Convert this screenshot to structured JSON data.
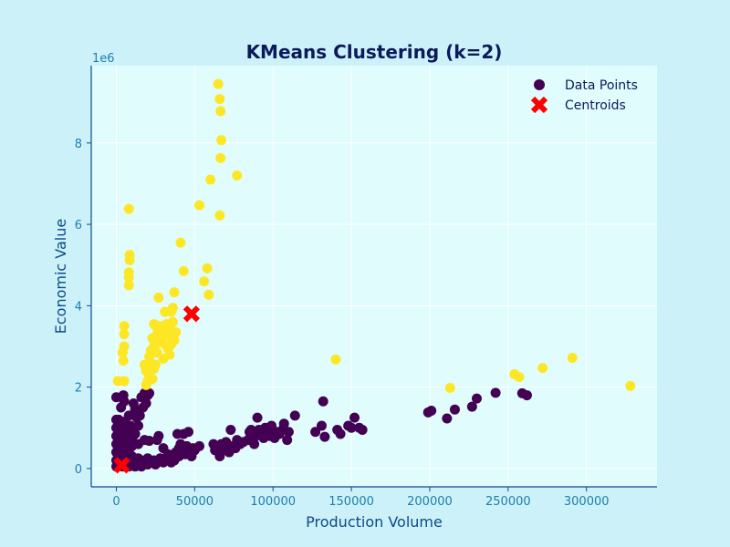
{
  "chart_data": {
    "type": "scatter",
    "title": "KMeans Clustering (k=2)",
    "xlabel": "Production Volume",
    "ylabel": "Economic Value",
    "y_offset_label": "1e6",
    "xlim": [
      -16000,
      345000
    ],
    "ylim": [
      -0.45,
      9.9
    ],
    "x_ticks": [
      0,
      50000,
      100000,
      150000,
      200000,
      250000,
      300000
    ],
    "x_tick_labels": [
      "0",
      "50000",
      "100000",
      "150000",
      "200000",
      "250000",
      "300000"
    ],
    "y_ticks": [
      0,
      2,
      4,
      6,
      8
    ],
    "y_tick_labels": [
      "0",
      "2",
      "4",
      "6",
      "8"
    ],
    "grid": true,
    "legend": {
      "position": "top-right",
      "entries": [
        "Data Points",
        "Centroids"
      ]
    },
    "colors": {
      "cluster_0": "#440154",
      "cluster_1": "#fde725",
      "centroid": "#ff0000",
      "plot_bg": "#e0fcfc",
      "figure_bg": "#cdf1f8",
      "axis": "#0b4a8a"
    },
    "series": [
      {
        "name": "Data Points (cluster 0)",
        "cluster": 0,
        "points": [
          [
            0,
            1.75
          ],
          [
            1500,
            1.2
          ],
          [
            3000,
            1.5
          ],
          [
            4500,
            1.8
          ],
          [
            5000,
            1.65
          ],
          [
            6000,
            1.1
          ],
          [
            7000,
            0.9
          ],
          [
            8000,
            1.3
          ],
          [
            9000,
            1.05
          ],
          [
            10000,
            0.95
          ],
          [
            11000,
            1.6
          ],
          [
            12000,
            1.45
          ],
          [
            13000,
            1.25
          ],
          [
            14000,
            1.05
          ],
          [
            15000,
            1.3
          ],
          [
            16000,
            1.75
          ],
          [
            17000,
            1.5
          ],
          [
            18000,
            1.85
          ],
          [
            19000,
            1.6
          ],
          [
            20000,
            1.8
          ],
          [
            21000,
            1.85
          ],
          [
            0,
            0.05
          ],
          [
            0,
            0.2
          ],
          [
            0,
            0.4
          ],
          [
            0,
            0.6
          ],
          [
            0,
            0.8
          ],
          [
            0,
            1.0
          ],
          [
            0,
            1.2
          ],
          [
            2000,
            0.1
          ],
          [
            2000,
            0.3
          ],
          [
            2000,
            0.55
          ],
          [
            2000,
            0.75
          ],
          [
            2000,
            0.95
          ],
          [
            4000,
            0.05
          ],
          [
            4000,
            0.25
          ],
          [
            4000,
            0.5
          ],
          [
            4000,
            0.7
          ],
          [
            4000,
            0.9
          ],
          [
            4000,
            1.15
          ],
          [
            6000,
            0.1
          ],
          [
            6000,
            0.35
          ],
          [
            6000,
            0.6
          ],
          [
            6000,
            0.8
          ],
          [
            8000,
            0.05
          ],
          [
            8000,
            0.2
          ],
          [
            8000,
            0.45
          ],
          [
            8000,
            0.7
          ],
          [
            10000,
            0.1
          ],
          [
            10000,
            0.3
          ],
          [
            10000,
            0.55
          ],
          [
            10000,
            0.75
          ],
          [
            12000,
            0.05
          ],
          [
            12000,
            0.2
          ],
          [
            12000,
            0.85
          ],
          [
            14000,
            0.1
          ],
          [
            14000,
            0.25
          ],
          [
            14000,
            0.6
          ],
          [
            16000,
            0.05
          ],
          [
            16000,
            0.2
          ],
          [
            18000,
            0.15
          ],
          [
            18000,
            0.7
          ],
          [
            20000,
            0.1
          ],
          [
            20000,
            0.25
          ],
          [
            21000,
            0.68
          ],
          [
            22000,
            0.15
          ],
          [
            24000,
            0.2
          ],
          [
            25000,
            0.1
          ],
          [
            26000,
            0.7
          ],
          [
            27000,
            0.8
          ],
          [
            28000,
            0.25
          ],
          [
            30000,
            0.15
          ],
          [
            30000,
            0.5
          ],
          [
            32000,
            0.2
          ],
          [
            33000,
            0.35
          ],
          [
            34000,
            0.25
          ],
          [
            35000,
            0.15
          ],
          [
            36000,
            0.3
          ],
          [
            37000,
            0.2
          ],
          [
            38000,
            0.4
          ],
          [
            39000,
            0.85
          ],
          [
            40000,
            0.5
          ],
          [
            40000,
            0.3
          ],
          [
            41000,
            0.6
          ],
          [
            42000,
            0.45
          ],
          [
            43000,
            0.85
          ],
          [
            44000,
            0.35
          ],
          [
            45000,
            0.55
          ],
          [
            46000,
            0.9
          ],
          [
            47000,
            0.4
          ],
          [
            48000,
            0.3
          ],
          [
            49000,
            0.5
          ],
          [
            50000,
            0.45
          ],
          [
            53000,
            0.55
          ],
          [
            62000,
            0.6
          ],
          [
            63000,
            0.45
          ],
          [
            65000,
            0.55
          ],
          [
            66000,
            0.3
          ],
          [
            67000,
            0.6
          ],
          [
            69000,
            0.45
          ],
          [
            70000,
            0.65
          ],
          [
            72000,
            0.4
          ],
          [
            73000,
            0.95
          ],
          [
            74000,
            0.55
          ],
          [
            76000,
            0.5
          ],
          [
            77000,
            0.7
          ],
          [
            79000,
            0.6
          ],
          [
            81000,
            0.65
          ],
          [
            84000,
            0.7
          ],
          [
            85000,
            0.9
          ],
          [
            86000,
            0.95
          ],
          [
            88000,
            0.6
          ],
          [
            89000,
            0.8
          ],
          [
            90000,
            1.25
          ],
          [
            91000,
            0.95
          ],
          [
            92000,
            0.85
          ],
          [
            94000,
            0.75
          ],
          [
            95000,
            1.0
          ],
          [
            97000,
            0.95
          ],
          [
            98000,
            0.8
          ],
          [
            99000,
            1.05
          ],
          [
            101000,
            0.75
          ],
          [
            102000,
            0.9
          ],
          [
            104000,
            0.85
          ],
          [
            106000,
            0.95
          ],
          [
            107000,
            1.1
          ],
          [
            109000,
            0.7
          ],
          [
            110000,
            0.9
          ],
          [
            114000,
            1.3
          ],
          [
            127000,
            0.9
          ],
          [
            131000,
            1.05
          ],
          [
            132000,
            1.65
          ],
          [
            133000,
            0.78
          ],
          [
            141000,
            0.95
          ],
          [
            143000,
            0.85
          ],
          [
            148000,
            1.05
          ],
          [
            150000,
            1.0
          ],
          [
            152000,
            1.25
          ],
          [
            155000,
            1.0
          ],
          [
            157000,
            0.95
          ],
          [
            199000,
            1.38
          ],
          [
            201000,
            1.42
          ],
          [
            211000,
            1.23
          ],
          [
            216000,
            1.45
          ],
          [
            227000,
            1.52
          ],
          [
            230000,
            1.72
          ],
          [
            242000,
            1.86
          ],
          [
            259000,
            1.85
          ],
          [
            262000,
            1.8
          ]
        ]
      },
      {
        "name": "Data Points (cluster 1)",
        "cluster": 1,
        "points": [
          [
            65000,
            9.45
          ],
          [
            66000,
            9.08
          ],
          [
            66500,
            8.78
          ],
          [
            67000,
            8.07
          ],
          [
            66500,
            7.63
          ],
          [
            77000,
            7.2
          ],
          [
            60000,
            7.1
          ],
          [
            53000,
            6.47
          ],
          [
            66000,
            6.22
          ],
          [
            8000,
            6.38
          ],
          [
            8500,
            5.25
          ],
          [
            8500,
            5.12
          ],
          [
            41000,
            5.55
          ],
          [
            8000,
            4.82
          ],
          [
            8000,
            4.7
          ],
          [
            8000,
            4.5
          ],
          [
            43000,
            4.85
          ],
          [
            58000,
            4.92
          ],
          [
            56000,
            4.6
          ],
          [
            59000,
            4.27
          ],
          [
            27000,
            4.2
          ],
          [
            37000,
            4.33
          ],
          [
            36000,
            3.95
          ],
          [
            35000,
            3.85
          ],
          [
            31000,
            3.85
          ],
          [
            5000,
            3.5
          ],
          [
            5000,
            3.3
          ],
          [
            5000,
            3.0
          ],
          [
            4000,
            2.85
          ],
          [
            4500,
            2.65
          ],
          [
            5000,
            2.15
          ],
          [
            1000,
            2.15
          ],
          [
            24000,
            3.55
          ],
          [
            26000,
            3.45
          ],
          [
            28000,
            3.5
          ],
          [
            30000,
            3.4
          ],
          [
            32000,
            3.55
          ],
          [
            33000,
            3.3
          ],
          [
            34000,
            3.5
          ],
          [
            35000,
            3.25
          ],
          [
            36000,
            3.6
          ],
          [
            37000,
            3.15
          ],
          [
            38000,
            3.35
          ],
          [
            29000,
            3.2
          ],
          [
            31000,
            3.05
          ],
          [
            27000,
            3.1
          ],
          [
            25000,
            3.25
          ],
          [
            23000,
            3.2
          ],
          [
            22000,
            2.9
          ],
          [
            24000,
            3.0
          ],
          [
            26000,
            2.85
          ],
          [
            33000,
            2.95
          ],
          [
            35000,
            3.05
          ],
          [
            34000,
            2.8
          ],
          [
            30000,
            2.7
          ],
          [
            21000,
            2.75
          ],
          [
            20000,
            2.55
          ],
          [
            22000,
            2.6
          ],
          [
            24000,
            2.45
          ],
          [
            19000,
            2.4
          ],
          [
            21000,
            2.3
          ],
          [
            23000,
            2.2
          ],
          [
            20000,
            2.15
          ],
          [
            18000,
            2.55
          ],
          [
            19000,
            2.05
          ],
          [
            25000,
            2.55
          ],
          [
            140000,
            2.68
          ],
          [
            213000,
            1.98
          ],
          [
            254000,
            2.32
          ],
          [
            257000,
            2.25
          ],
          [
            272000,
            2.47
          ],
          [
            291000,
            2.72
          ],
          [
            328000,
            2.03
          ]
        ]
      },
      {
        "name": "Centroids",
        "points": [
          [
            48000,
            3.8
          ],
          [
            3500,
            0.08
          ]
        ]
      }
    ]
  }
}
